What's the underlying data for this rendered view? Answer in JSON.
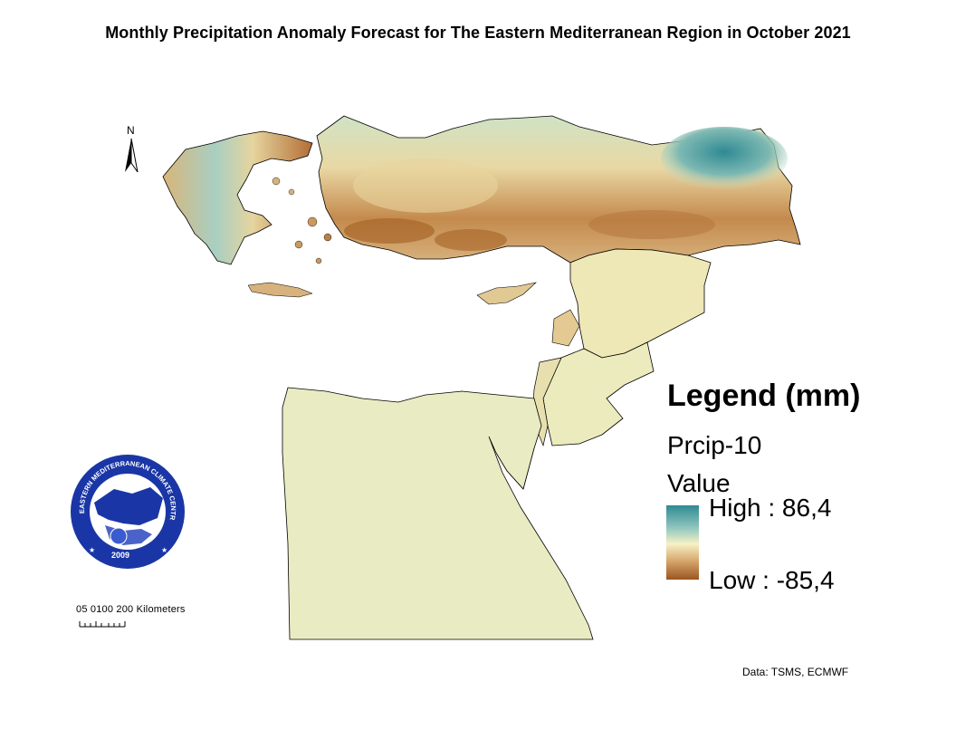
{
  "title": "Monthly Precipitation Anomaly Forecast  for The Eastern Mediterranean Region in October 2021",
  "north_arrow": {
    "label": "N"
  },
  "legend": {
    "title": "Legend (mm)",
    "layer": "Prcip-10",
    "field": "Value",
    "high_label": "High : 86,4",
    "low_label": "Low : -85,4",
    "high_value": 86.4,
    "low_value": -85.4,
    "colors": {
      "high": "#2f8a93",
      "mid": "#f6f2c6",
      "low": "#9a5520"
    }
  },
  "scale_bar": {
    "label": "05 0100 200 Kilometers"
  },
  "logo": {
    "text_top": "EASTERN MEDITERRANEAN CLIMATE CENTRE",
    "year": "2009"
  },
  "source": "Data:  TSMS, ECMWF"
}
